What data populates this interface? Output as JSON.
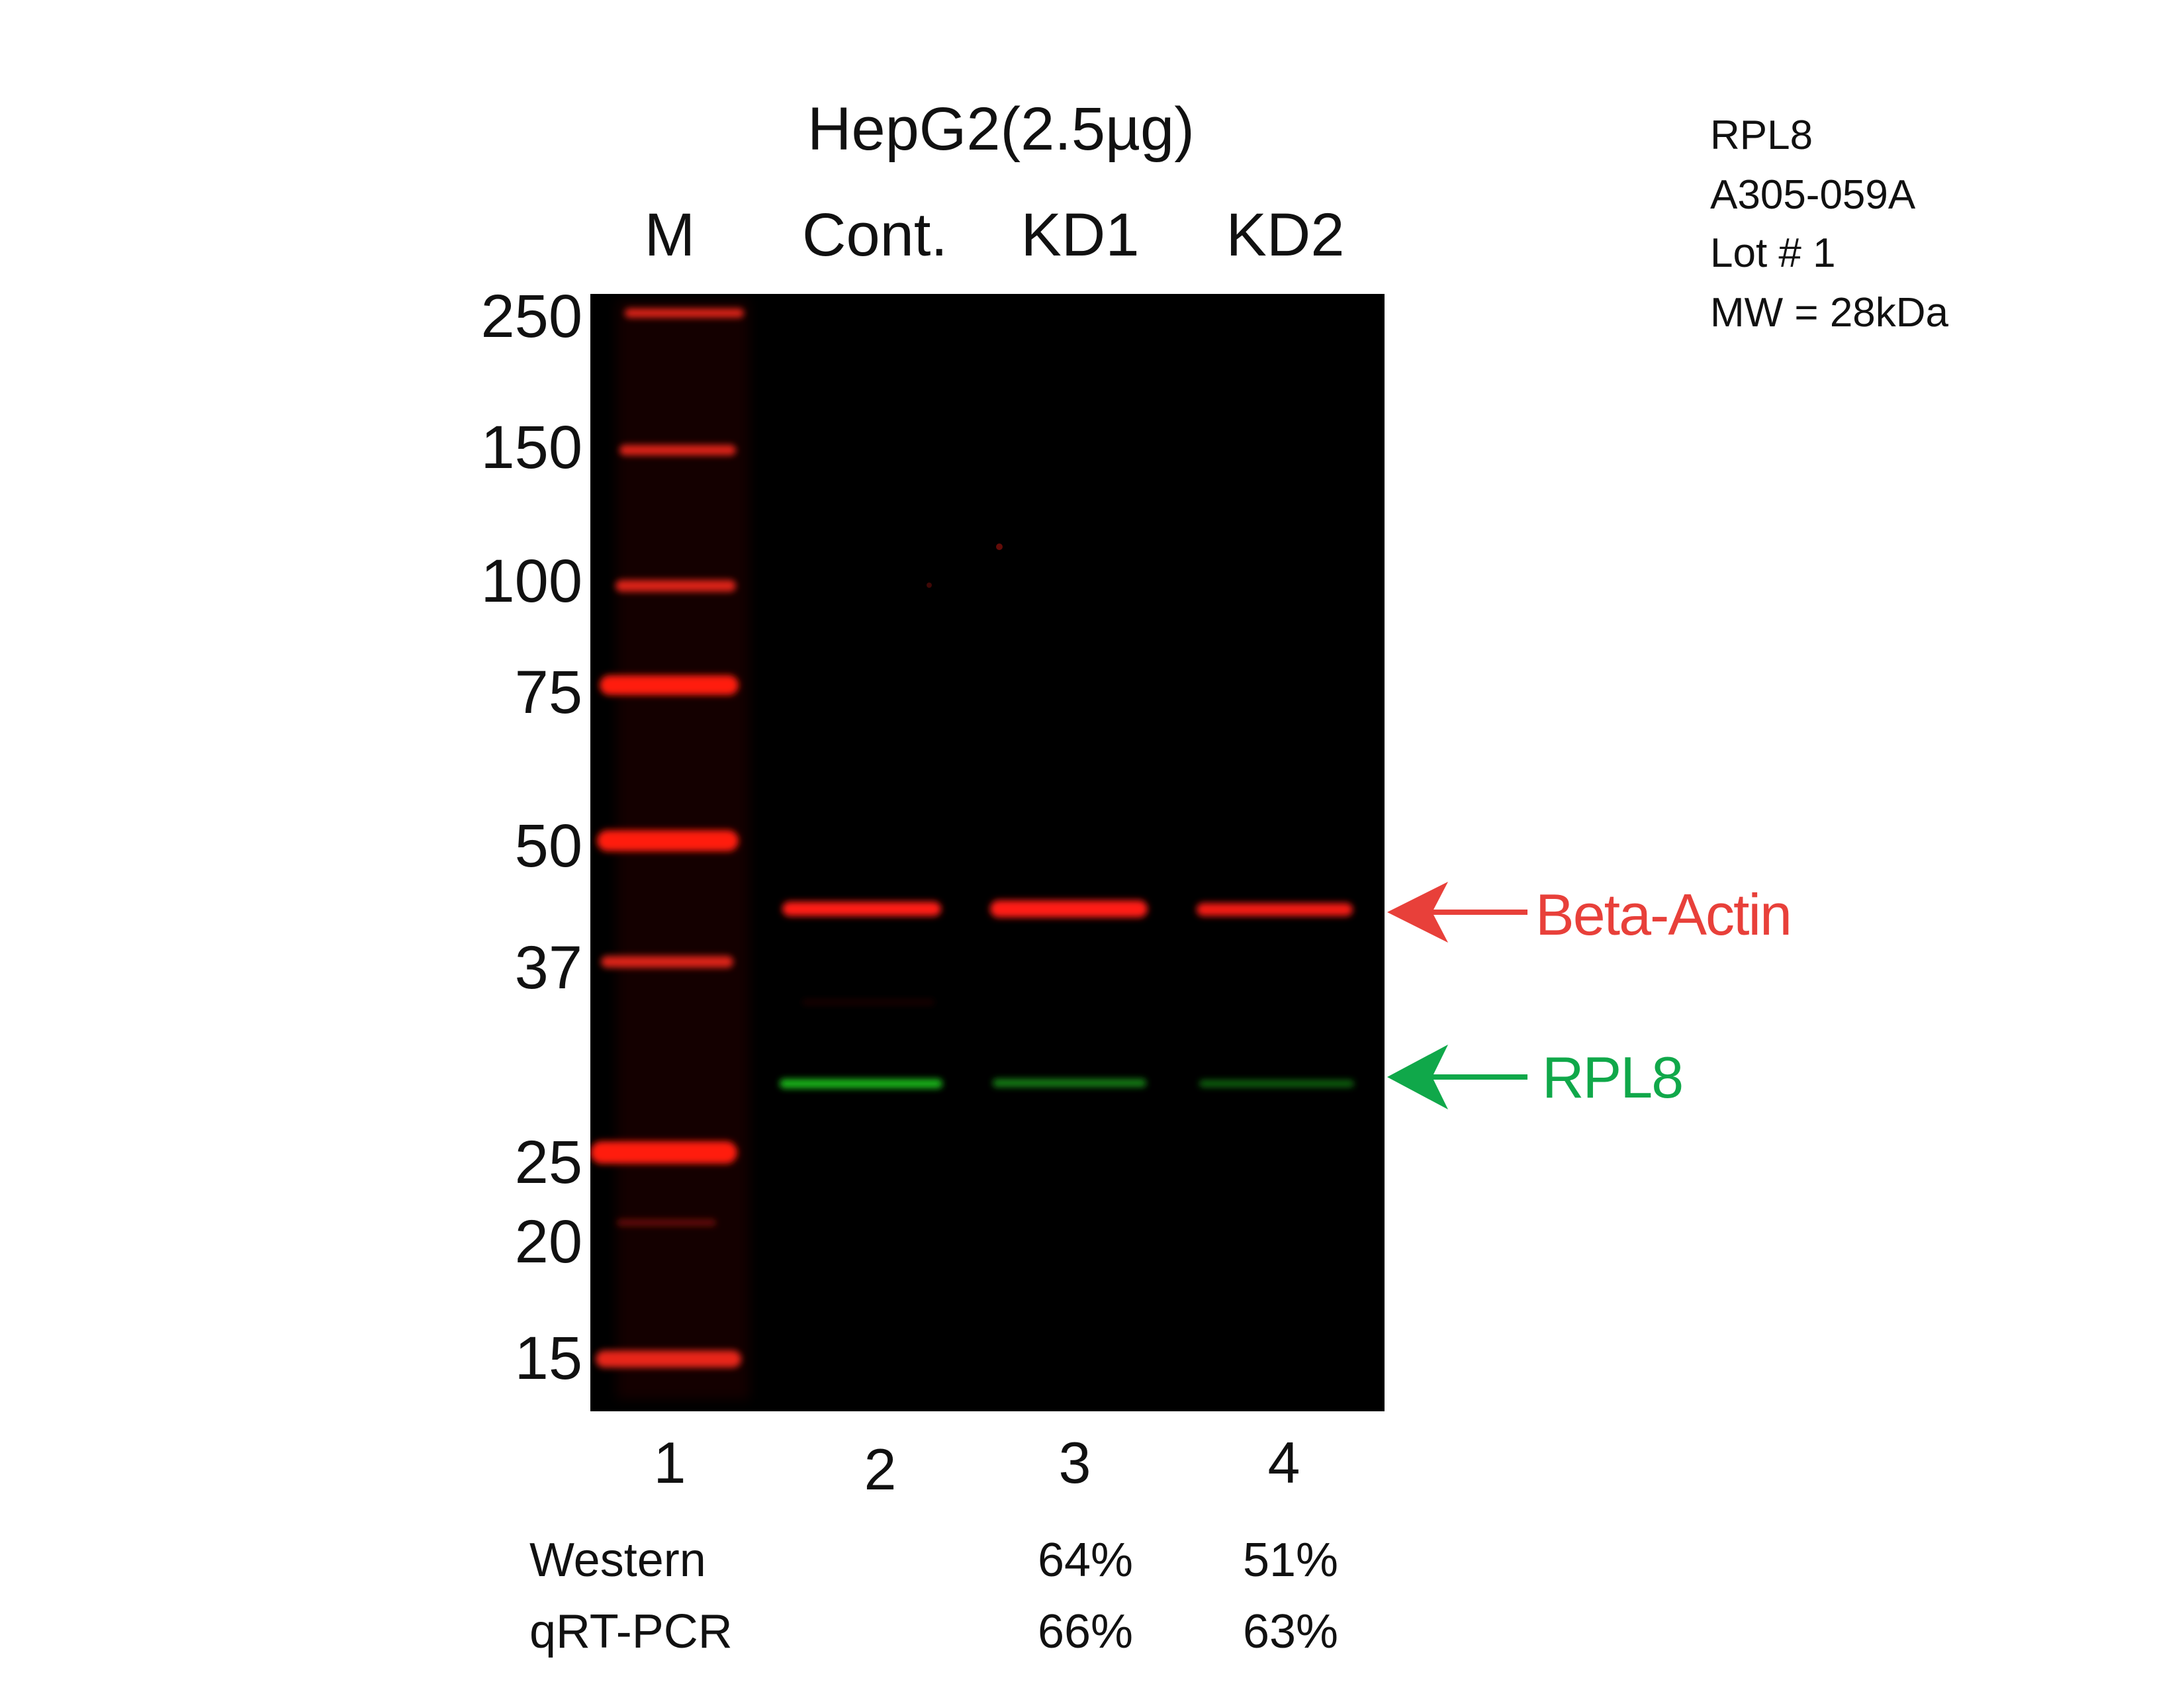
{
  "sample": {
    "title": "HepG2(2.5µg)"
  },
  "lanes": [
    {
      "label": "M",
      "number": "1"
    },
    {
      "label": "Cont.",
      "number": "2"
    },
    {
      "label": "KD1",
      "number": "3"
    },
    {
      "label": "KD2",
      "number": "4"
    }
  ],
  "markers": [
    "250",
    "150",
    "100",
    "75",
    "50",
    "37",
    "25",
    "20",
    "15"
  ],
  "info": {
    "target": "RPL8",
    "catalog": "A305-059A",
    "lot": "Lot # 1",
    "mw": "MW = 28kDa"
  },
  "bands": {
    "actin": {
      "label": "Beta-Actin",
      "color": "#e8403a"
    },
    "target": {
      "label": "RPL8",
      "color": "#10a84a"
    }
  },
  "quantification": {
    "western": {
      "label": "Western",
      "kd1": "64%",
      "kd2": "51%"
    },
    "qrtpcr": {
      "label": "qRT-PCR",
      "kd1": "66%",
      "kd2": "63%"
    }
  },
  "colors": {
    "membrane": "#000000",
    "ladder": "#ff2a1f",
    "actin_band": "#ff1a12",
    "rpl8_band": "#1fc21f"
  }
}
